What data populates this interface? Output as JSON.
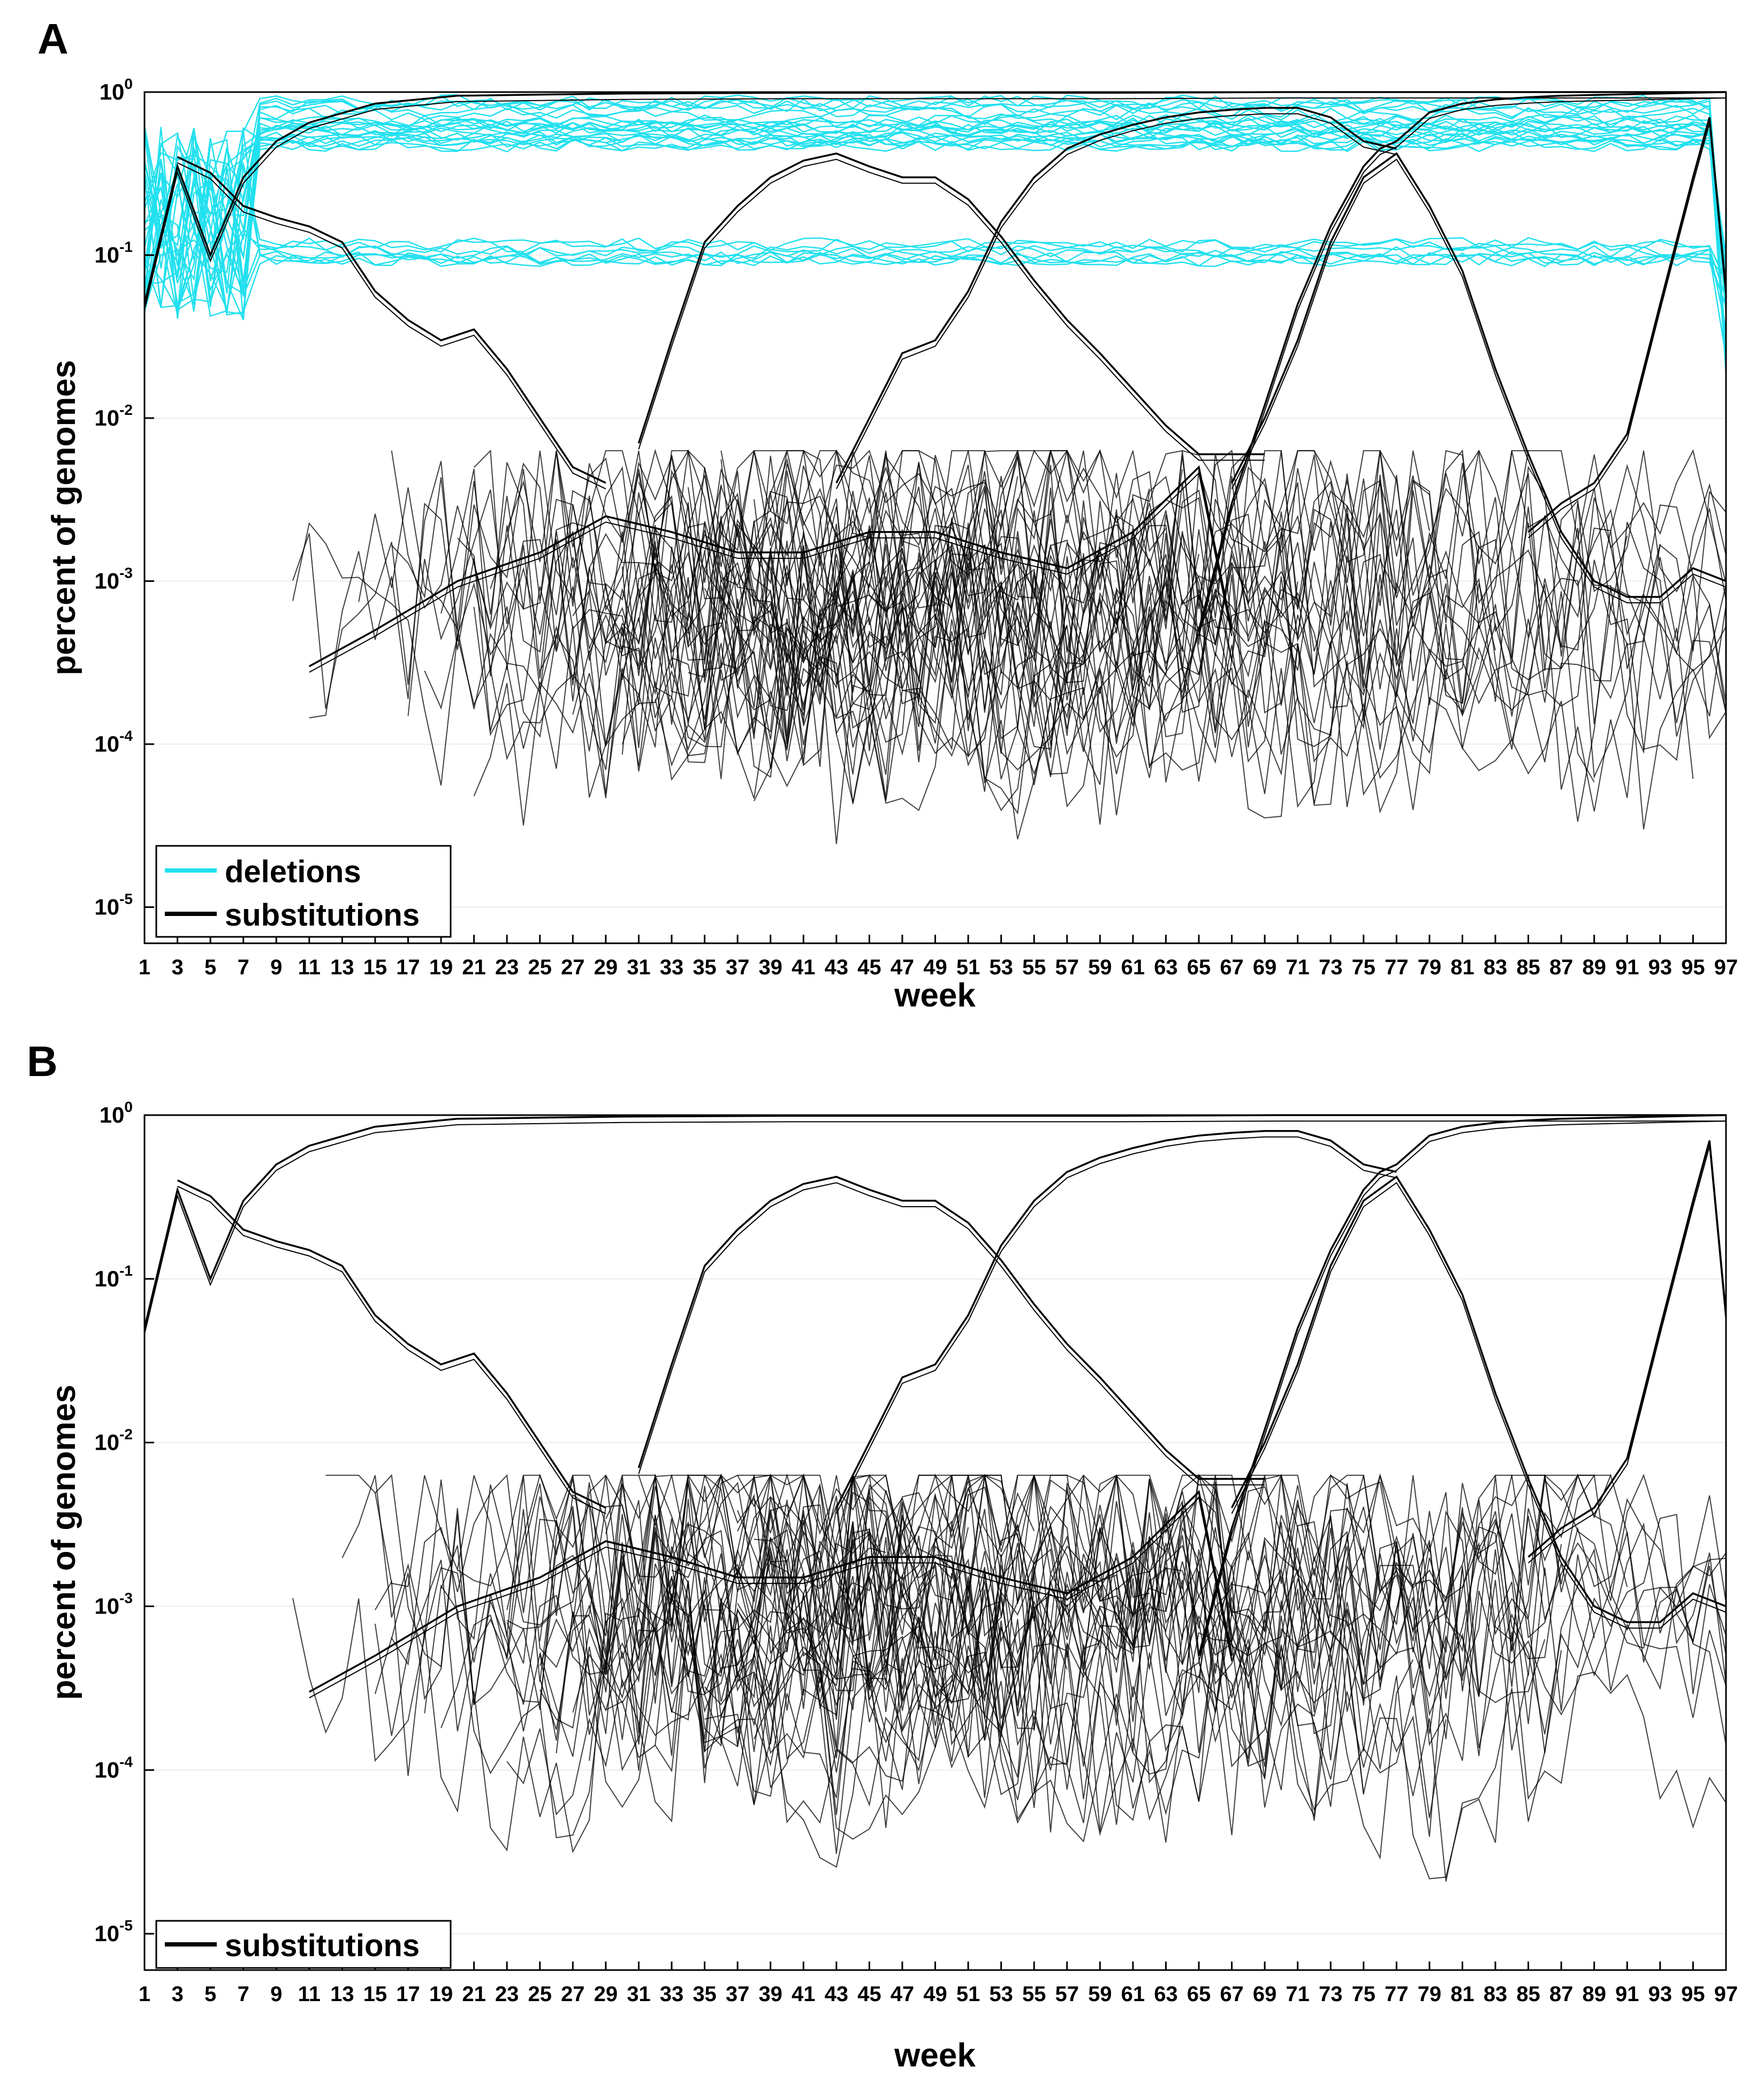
{
  "chart_data": [
    {
      "panel_label": "A",
      "type": "line",
      "scale": "log",
      "xlabel": "week",
      "ylabel": "percent of genomes",
      "xlim": [
        1,
        97
      ],
      "ylim": [
        6e-06,
        1
      ],
      "x_ticks": [
        "1",
        "3",
        "5",
        "7",
        "9",
        "11",
        "13",
        "15",
        "17",
        "19",
        "21",
        "23",
        "25",
        "27",
        "29",
        "31",
        "33",
        "35",
        "37",
        "39",
        "41",
        "43",
        "45",
        "47",
        "49",
        "51",
        "53",
        "55",
        "57",
        "59",
        "61",
        "63",
        "65",
        "67",
        "69",
        "71",
        "73",
        "75",
        "77",
        "79",
        "81",
        "83",
        "85",
        "87",
        "89",
        "91",
        "93",
        "95",
        "97"
      ],
      "y_ticks": [
        {
          "value": 1,
          "mantissa": "10",
          "exp": "0"
        },
        {
          "value": 0.1,
          "mantissa": "10",
          "exp": "-1"
        },
        {
          "value": 0.01,
          "mantissa": "10",
          "exp": "-2"
        },
        {
          "value": 0.001,
          "mantissa": "10",
          "exp": "-3"
        },
        {
          "value": 0.0001,
          "mantissa": "10",
          "exp": "-4"
        },
        {
          "value": 1e-05,
          "mantissa": "10",
          "exp": "-5"
        }
      ],
      "legend": [
        {
          "label": "deletions",
          "color": "#22e0ee"
        },
        {
          "label": "substitutions",
          "color": "#000000"
        }
      ],
      "legend_position": "bottom-left",
      "series": [
        {
          "name": "substitutions",
          "color": "#000000",
          "x": [
            1,
            3,
            5,
            7,
            9,
            11,
            15,
            20,
            30,
            40,
            50,
            60,
            70,
            80,
            90,
            97
          ],
          "y": [
            0.05,
            0.35,
            0.1,
            0.3,
            0.5,
            0.65,
            0.85,
            0.95,
            0.98,
            0.99,
            0.99,
            0.99,
            1,
            1,
            1,
            1
          ]
        },
        {
          "name": "substitutions",
          "color": "#000000",
          "x": [
            31,
            33,
            35,
            37,
            39,
            41,
            43,
            45,
            47,
            49,
            51,
            53,
            55,
            57,
            59,
            61,
            63,
            65,
            67,
            69
          ],
          "y": [
            0.007,
            0.03,
            0.12,
            0.2,
            0.3,
            0.38,
            0.42,
            0.35,
            0.3,
            0.3,
            0.22,
            0.13,
            0.07,
            0.04,
            0.025,
            0.015,
            0.009,
            0.006,
            0.006,
            0.006
          ]
        },
        {
          "name": "substitutions",
          "color": "#000000",
          "x": [
            43,
            45,
            47,
            49,
            51,
            53,
            55,
            57,
            59,
            61,
            63,
            65,
            67,
            69,
            71,
            73,
            75,
            77
          ],
          "y": [
            0.004,
            0.01,
            0.025,
            0.03,
            0.06,
            0.16,
            0.3,
            0.45,
            0.55,
            0.63,
            0.7,
            0.75,
            0.78,
            0.8,
            0.8,
            0.7,
            0.5,
            0.45
          ]
        },
        {
          "name": "substitutions",
          "color": "#000000",
          "x": [
            65,
            67,
            69,
            71,
            73,
            75,
            76,
            77,
            79,
            81,
            83,
            85,
            87,
            89,
            91,
            93,
            95,
            97
          ],
          "y": [
            0.0005,
            0.003,
            0.012,
            0.05,
            0.15,
            0.35,
            0.45,
            0.5,
            0.75,
            0.85,
            0.9,
            0.93,
            0.95,
            0.96,
            0.97,
            0.98,
            0.99,
            1
          ]
        },
        {
          "name": "substitutions",
          "color": "#000000",
          "x": [
            67,
            69,
            71,
            73,
            75,
            77,
            79,
            81,
            83,
            85,
            87,
            89,
            91,
            93,
            95,
            97
          ],
          "y": [
            0.004,
            0.01,
            0.03,
            0.12,
            0.3,
            0.42,
            0.2,
            0.08,
            0.02,
            0.006,
            0.002,
            0.001,
            0.0008,
            0.0008,
            0.0012,
            0.001
          ]
        },
        {
          "name": "substitutions",
          "color": "#000000",
          "x": [
            3,
            5,
            7,
            9,
            11,
            13,
            15,
            17,
            19,
            21,
            23,
            25,
            27,
            29
          ],
          "y": [
            0.4,
            0.32,
            0.2,
            0.17,
            0.15,
            0.12,
            0.06,
            0.04,
            0.03,
            0.035,
            0.02,
            0.01,
            0.005,
            0.004
          ]
        },
        {
          "name": "substitutions",
          "color": "#000000",
          "x": [
            11,
            15,
            20,
            25,
            29,
            33,
            37,
            41,
            45,
            49,
            53,
            57,
            61,
            65,
            67
          ],
          "y": [
            0.0003,
            0.0005,
            0.001,
            0.0015,
            0.0025,
            0.002,
            0.0015,
            0.0015,
            0.002,
            0.002,
            0.0015,
            0.0012,
            0.002,
            0.005,
            0.0005
          ]
        },
        {
          "name": "substitutions",
          "color": "#000000",
          "x": [
            85,
            87,
            89,
            91,
            93,
            95,
            96,
            97
          ],
          "y": [
            0.002,
            0.003,
            0.004,
            0.008,
            0.05,
            0.3,
            0.7,
            0.06
          ]
        }
      ]
    },
    {
      "panel_label": "B",
      "type": "line",
      "scale": "log",
      "xlabel": "week",
      "ylabel": "percent of genomes",
      "xlim": [
        1,
        97
      ],
      "ylim": [
        6e-06,
        1
      ],
      "x_ticks": [
        "1",
        "3",
        "5",
        "7",
        "9",
        "11",
        "13",
        "15",
        "17",
        "19",
        "21",
        "23",
        "25",
        "27",
        "29",
        "31",
        "33",
        "35",
        "37",
        "39",
        "41",
        "43",
        "45",
        "47",
        "49",
        "51",
        "53",
        "55",
        "57",
        "59",
        "61",
        "63",
        "65",
        "67",
        "69",
        "71",
        "73",
        "75",
        "77",
        "79",
        "81",
        "83",
        "85",
        "87",
        "89",
        "91",
        "93",
        "95",
        "97"
      ],
      "y_ticks": [
        {
          "value": 1,
          "mantissa": "10",
          "exp": "0"
        },
        {
          "value": 0.1,
          "mantissa": "10",
          "exp": "-1"
        },
        {
          "value": 0.01,
          "mantissa": "10",
          "exp": "-2"
        },
        {
          "value": 0.001,
          "mantissa": "10",
          "exp": "-3"
        },
        {
          "value": 0.0001,
          "mantissa": "10",
          "exp": "-4"
        },
        {
          "value": 1e-05,
          "mantissa": "10",
          "exp": "-5"
        }
      ],
      "legend": [
        {
          "label": "substitutions",
          "color": "#000000"
        }
      ],
      "legend_position": "bottom-left",
      "series": [
        {
          "name": "substitutions",
          "color": "#000000",
          "x": [
            1,
            3,
            5,
            7,
            9,
            11,
            15,
            20,
            30,
            40,
            50,
            60,
            70,
            80,
            90,
            97
          ],
          "y": [
            0.05,
            0.35,
            0.1,
            0.3,
            0.5,
            0.65,
            0.85,
            0.95,
            0.98,
            0.99,
            0.99,
            0.99,
            1,
            1,
            1,
            1
          ]
        },
        {
          "name": "substitutions",
          "color": "#000000",
          "x": [
            31,
            33,
            35,
            37,
            39,
            41,
            43,
            45,
            47,
            49,
            51,
            53,
            55,
            57,
            59,
            61,
            63,
            65,
            67,
            69
          ],
          "y": [
            0.007,
            0.03,
            0.12,
            0.2,
            0.3,
            0.38,
            0.42,
            0.35,
            0.3,
            0.3,
            0.22,
            0.13,
            0.07,
            0.04,
            0.025,
            0.015,
            0.009,
            0.006,
            0.006,
            0.006
          ]
        },
        {
          "name": "substitutions",
          "color": "#000000",
          "x": [
            43,
            45,
            47,
            49,
            51,
            53,
            55,
            57,
            59,
            61,
            63,
            65,
            67,
            69,
            71,
            73,
            75,
            77
          ],
          "y": [
            0.004,
            0.01,
            0.025,
            0.03,
            0.06,
            0.16,
            0.3,
            0.45,
            0.55,
            0.63,
            0.7,
            0.75,
            0.78,
            0.8,
            0.8,
            0.7,
            0.5,
            0.45
          ]
        },
        {
          "name": "substitutions",
          "color": "#000000",
          "x": [
            65,
            67,
            69,
            71,
            73,
            75,
            76,
            77,
            79,
            81,
            83,
            85,
            87,
            89,
            91,
            93,
            95,
            97
          ],
          "y": [
            0.0005,
            0.003,
            0.012,
            0.05,
            0.15,
            0.35,
            0.45,
            0.5,
            0.75,
            0.85,
            0.9,
            0.93,
            0.95,
            0.96,
            0.97,
            0.98,
            0.99,
            1
          ]
        },
        {
          "name": "substitutions",
          "color": "#000000",
          "x": [
            67,
            69,
            71,
            73,
            75,
            77,
            79,
            81,
            83,
            85,
            87,
            89,
            91,
            93,
            95,
            97
          ],
          "y": [
            0.004,
            0.01,
            0.03,
            0.12,
            0.3,
            0.42,
            0.2,
            0.08,
            0.02,
            0.006,
            0.002,
            0.001,
            0.0008,
            0.0008,
            0.0012,
            0.001
          ]
        },
        {
          "name": "substitutions",
          "color": "#000000",
          "x": [
            3,
            5,
            7,
            9,
            11,
            13,
            15,
            17,
            19,
            21,
            23,
            25,
            27,
            29
          ],
          "y": [
            0.4,
            0.32,
            0.2,
            0.17,
            0.15,
            0.12,
            0.06,
            0.04,
            0.03,
            0.035,
            0.02,
            0.01,
            0.005,
            0.004
          ]
        },
        {
          "name": "substitutions",
          "color": "#000000",
          "x": [
            11,
            15,
            20,
            25,
            29,
            33,
            37,
            41,
            45,
            49,
            53,
            57,
            61,
            65,
            67
          ],
          "y": [
            0.0003,
            0.0005,
            0.001,
            0.0015,
            0.0025,
            0.002,
            0.0015,
            0.0015,
            0.002,
            0.002,
            0.0015,
            0.0012,
            0.002,
            0.005,
            0.0005
          ]
        },
        {
          "name": "substitutions",
          "color": "#000000",
          "x": [
            85,
            87,
            89,
            91,
            93,
            95,
            96,
            97
          ],
          "y": [
            0.002,
            0.003,
            0.004,
            0.008,
            0.05,
            0.3,
            0.7,
            0.06
          ]
        }
      ]
    }
  ]
}
